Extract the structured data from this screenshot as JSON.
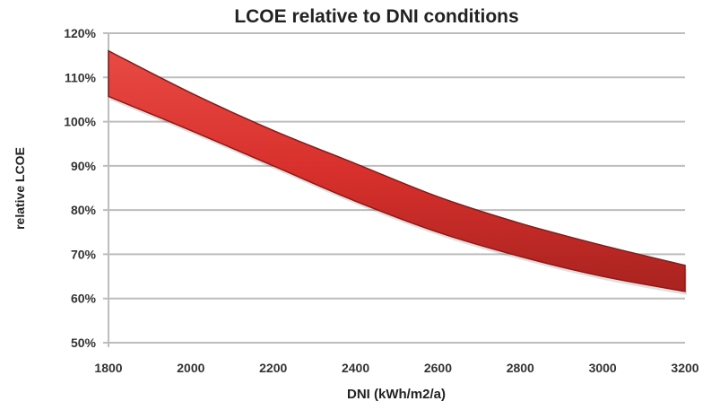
{
  "chart_data": {
    "type": "area",
    "title": "LCOE relative to DNI conditions",
    "xlabel": "DNI (kWh/m2/a)",
    "ylabel": "relative LCOE",
    "xlim": [
      1800,
      3200
    ],
    "ylim": [
      50,
      120
    ],
    "x_ticks": [
      1800,
      2000,
      2200,
      2400,
      2600,
      2800,
      3000,
      3200
    ],
    "y_ticks": [
      50,
      60,
      70,
      80,
      90,
      100,
      110,
      120
    ],
    "y_tick_format": "percent",
    "grid": "horizontal",
    "band_color": "#d8302c",
    "band_edge_color": "#8a1a18",
    "x": [
      1800,
      2000,
      2200,
      2400,
      2600,
      2800,
      3000,
      3200
    ],
    "series": [
      {
        "values_upper": [
          116,
          106.5,
          98,
          90.5,
          83,
          77,
          72,
          67.5
        ],
        "values_lower": [
          105.7,
          98,
          90,
          82,
          75,
          69.5,
          65,
          61.6
        ]
      }
    ]
  }
}
